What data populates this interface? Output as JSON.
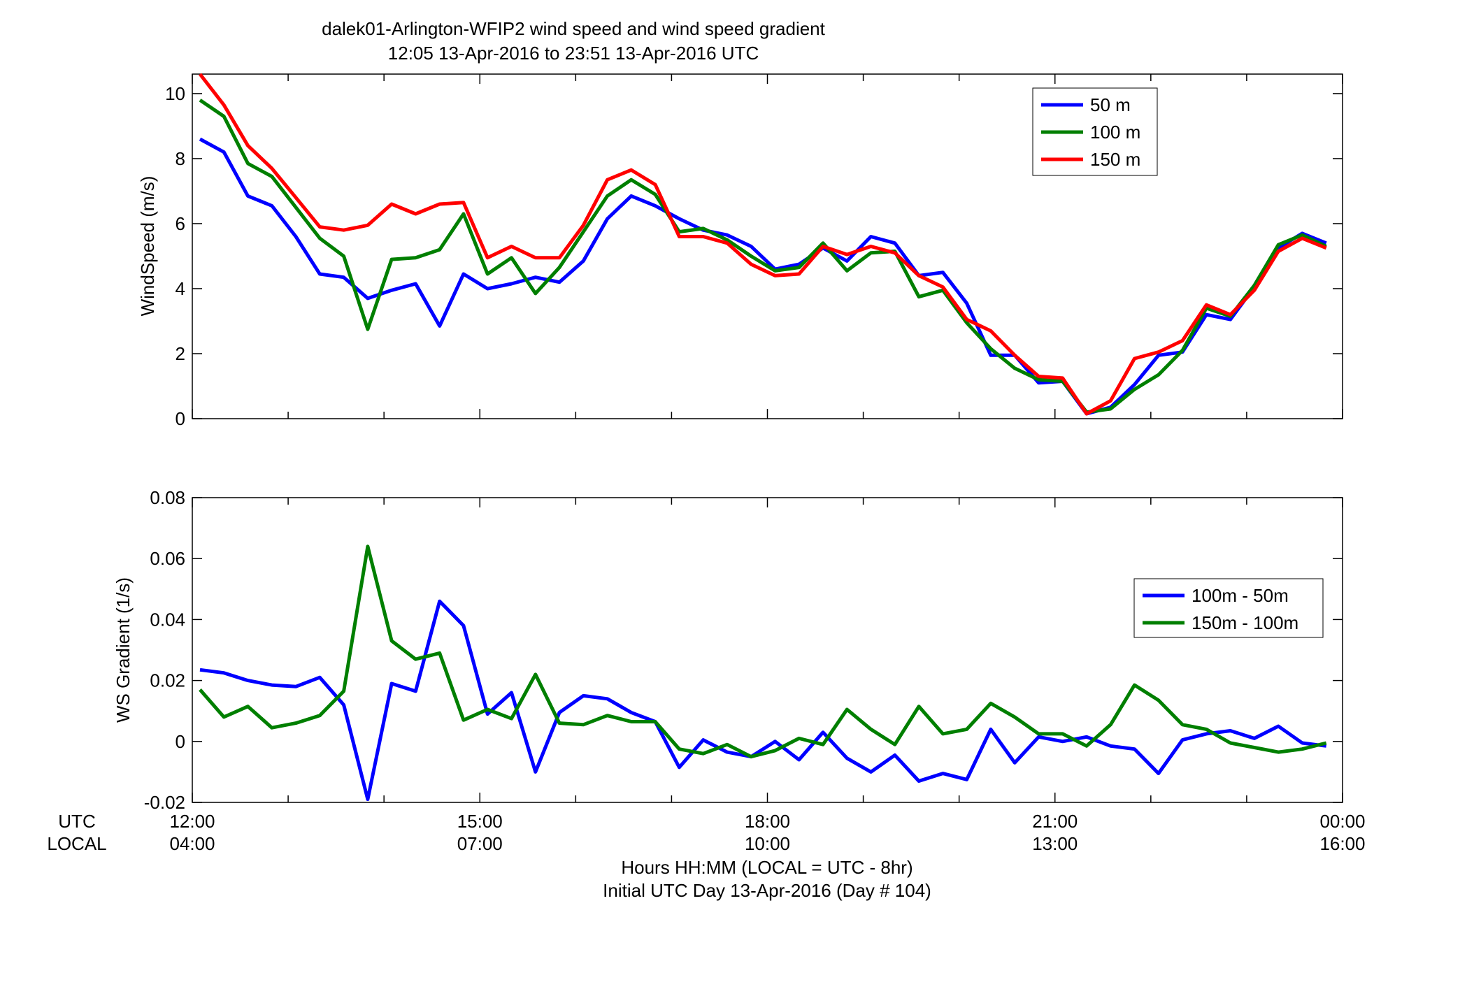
{
  "figure": {
    "title_line1": "dalek01-Arlington-WFIP2  wind speed and wind speed gradient",
    "title_line2": "12:05 13-Apr-2016 to 23:51 13-Apr-2016  UTC",
    "xlabel_line1": "Hours HH:MM  (LOCAL = UTC - 8hr)",
    "xlabel_line2": "Initial UTC Day 13-Apr-2016 (Day # 104)",
    "row_label_utc": "UTC",
    "row_label_local": "LOCAL",
    "utc_ticks": [
      "12:00",
      "15:00",
      "18:00",
      "21:00",
      "00:00"
    ],
    "local_ticks": [
      "04:00",
      "07:00",
      "10:00",
      "13:00",
      "16:00"
    ]
  },
  "chart_data": [
    {
      "type": "line",
      "ylabel": "WindSpeed (m/s)",
      "xlim": [
        12,
        24
      ],
      "ylim": [
        0,
        10.6
      ],
      "yticks": [
        0,
        2,
        4,
        6,
        8,
        10
      ],
      "ytick_labels": [
        "0",
        "2",
        "4",
        "6",
        "8",
        "10"
      ],
      "grid": false,
      "legend_position": "top-right",
      "x": [
        12.08,
        12.33,
        12.58,
        12.83,
        13.08,
        13.33,
        13.58,
        13.83,
        14.08,
        14.33,
        14.58,
        14.83,
        15.08,
        15.33,
        15.58,
        15.83,
        16.08,
        16.33,
        16.58,
        16.83,
        17.08,
        17.33,
        17.58,
        17.83,
        18.08,
        18.33,
        18.58,
        18.83,
        19.08,
        19.33,
        19.58,
        19.83,
        20.08,
        20.33,
        20.58,
        20.83,
        21.08,
        21.33,
        21.58,
        21.83,
        22.08,
        22.33,
        22.58,
        22.83,
        23.08,
        23.33,
        23.58,
        23.83
      ],
      "series": [
        {
          "name": "50 m",
          "color": "#0000ff",
          "values": [
            8.6,
            8.2,
            6.85,
            6.55,
            5.6,
            4.45,
            4.35,
            3.7,
            3.95,
            4.15,
            2.85,
            4.45,
            4.0,
            4.15,
            4.35,
            4.2,
            4.85,
            6.15,
            6.85,
            6.55,
            6.15,
            5.8,
            5.65,
            5.3,
            4.6,
            4.75,
            5.25,
            4.85,
            5.6,
            5.4,
            4.4,
            4.5,
            3.55,
            1.95,
            1.95,
            1.1,
            1.15,
            0.15,
            0.35,
            1.05,
            1.95,
            2.05,
            3.2,
            3.05,
            4.05,
            5.25,
            5.7,
            5.4
          ]
        },
        {
          "name": "100 m",
          "color": "#007f00",
          "values": [
            9.8,
            9.3,
            7.85,
            7.45,
            6.5,
            5.55,
            5.0,
            2.75,
            4.9,
            4.95,
            5.2,
            6.3,
            4.45,
            4.95,
            3.85,
            4.65,
            5.75,
            6.85,
            7.35,
            6.9,
            5.75,
            5.85,
            5.5,
            5.0,
            4.55,
            4.65,
            5.4,
            4.55,
            5.1,
            5.15,
            3.75,
            3.95,
            2.95,
            2.15,
            1.55,
            1.2,
            1.15,
            0.2,
            0.3,
            0.9,
            1.35,
            2.1,
            3.4,
            3.15,
            4.1,
            5.35,
            5.65,
            5.3
          ]
        },
        {
          "name": "150 m",
          "color": "#ff0000",
          "values": [
            10.6,
            9.65,
            8.4,
            7.7,
            6.8,
            5.9,
            5.8,
            5.95,
            6.6,
            6.3,
            6.6,
            6.65,
            4.95,
            5.3,
            4.95,
            4.95,
            5.95,
            7.35,
            7.65,
            7.2,
            5.6,
            5.6,
            5.4,
            4.75,
            4.4,
            4.45,
            5.3,
            5.05,
            5.3,
            5.1,
            4.4,
            4.05,
            3.05,
            2.7,
            1.95,
            1.3,
            1.25,
            0.15,
            0.55,
            1.85,
            2.05,
            2.4,
            3.5,
            3.2,
            3.95,
            5.15,
            5.55,
            5.25
          ]
        }
      ]
    },
    {
      "type": "line",
      "ylabel": "WS Gradient (1/s)",
      "xlim": [
        12,
        24
      ],
      "ylim": [
        -0.02,
        0.08
      ],
      "yticks": [
        -0.02,
        0,
        0.02,
        0.04,
        0.06,
        0.08
      ],
      "ytick_labels": [
        "-0.02",
        "0",
        "0.02",
        "0.04",
        "0.06",
        "0.08"
      ],
      "grid": false,
      "legend_position": "middle-right",
      "x": [
        12.08,
        12.33,
        12.58,
        12.83,
        13.08,
        13.33,
        13.58,
        13.83,
        14.08,
        14.33,
        14.58,
        14.83,
        15.08,
        15.33,
        15.58,
        15.83,
        16.08,
        16.33,
        16.58,
        16.83,
        17.08,
        17.33,
        17.58,
        17.83,
        18.08,
        18.33,
        18.58,
        18.83,
        19.08,
        19.33,
        19.58,
        19.83,
        20.08,
        20.33,
        20.58,
        20.83,
        21.08,
        21.33,
        21.58,
        21.83,
        22.08,
        22.33,
        22.58,
        22.83,
        23.08,
        23.33,
        23.58,
        23.83
      ],
      "series": [
        {
          "name": "100m - 50m",
          "color": "#0000ff",
          "values": [
            0.0235,
            0.0225,
            0.02,
            0.0185,
            0.018,
            0.021,
            0.012,
            -0.019,
            0.019,
            0.0165,
            0.046,
            0.038,
            0.009,
            0.016,
            -0.01,
            0.0095,
            0.015,
            0.014,
            0.0095,
            0.0065,
            -0.0085,
            0.0005,
            -0.0035,
            -0.005,
            0.0,
            -0.006,
            0.003,
            -0.0055,
            -0.01,
            -0.0045,
            -0.013,
            -0.0105,
            -0.0125,
            0.004,
            -0.007,
            0.0015,
            0.0,
            0.0015,
            -0.0015,
            -0.0025,
            -0.0105,
            0.0005,
            0.0025,
            0.0035,
            0.001,
            0.005,
            -0.0005,
            -0.0015
          ]
        },
        {
          "name": "150m - 100m",
          "color": "#007f00",
          "values": [
            0.017,
            0.008,
            0.0115,
            0.0045,
            0.006,
            0.0085,
            0.0165,
            0.064,
            0.033,
            0.027,
            0.029,
            0.007,
            0.0105,
            0.0075,
            0.022,
            0.006,
            0.0055,
            0.0085,
            0.0065,
            0.0065,
            -0.0025,
            -0.004,
            -0.001,
            -0.005,
            -0.003,
            0.001,
            -0.001,
            0.0105,
            0.004,
            -0.001,
            0.0115,
            0.0025,
            0.004,
            0.0125,
            0.008,
            0.0025,
            0.0025,
            -0.0015,
            0.0055,
            0.0185,
            0.0135,
            0.0055,
            0.004,
            -0.0005,
            -0.002,
            -0.0035,
            -0.0025,
            -0.0005
          ]
        }
      ]
    }
  ]
}
